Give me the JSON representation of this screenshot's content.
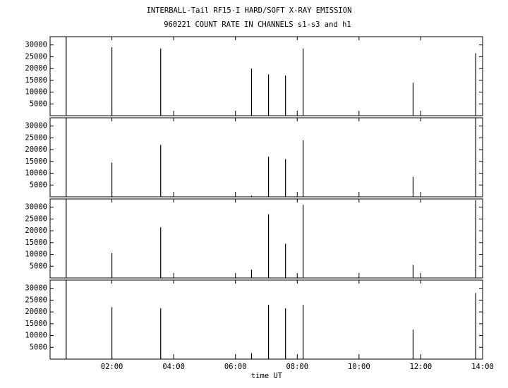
{
  "chart_data": {
    "type": "spike",
    "title": "INTERBALL-Tail RF15-I HARD/SOFT X-RAY EMISSION",
    "subtitle": "960221  COUNT RATE IN CHANNELS s1-s3 and h1",
    "x_label": "time UT",
    "x": [
      0.52,
      2.0,
      3.58,
      6.52,
      7.07,
      7.62,
      8.19,
      11.75,
      13.78
    ],
    "xlim": [
      0,
      14
    ],
    "xticks": [
      {
        "value": 2,
        "label": "02:00"
      },
      {
        "value": 4,
        "label": "04:00"
      },
      {
        "value": 6,
        "label": "06:00"
      },
      {
        "value": 8,
        "label": "08:00"
      },
      {
        "value": 10,
        "label": "10:00"
      },
      {
        "value": 12,
        "label": "12:00"
      },
      {
        "value": 14,
        "label": "14:00"
      }
    ],
    "ylim": [
      0,
      33500
    ],
    "yticks": [
      5000,
      10000,
      15000,
      20000,
      25000,
      30000
    ],
    "series": [
      {
        "color": "#000000",
        "values": [
          33500,
          29000,
          28500,
          20000,
          17500,
          17000,
          28500,
          14000,
          26500
        ]
      },
      {
        "color": "#000000",
        "values": [
          33500,
          14500,
          22000,
          500,
          17000,
          16000,
          24000,
          8500,
          33500
        ]
      },
      {
        "color": "#000000",
        "values": [
          33500,
          10500,
          21500,
          3500,
          27000,
          14500,
          31000,
          5500,
          33000
        ]
      },
      {
        "color": "#000000",
        "values": [
          33500,
          22000,
          21500,
          2500,
          23000,
          21500,
          23000,
          12500,
          28000
        ]
      }
    ]
  }
}
